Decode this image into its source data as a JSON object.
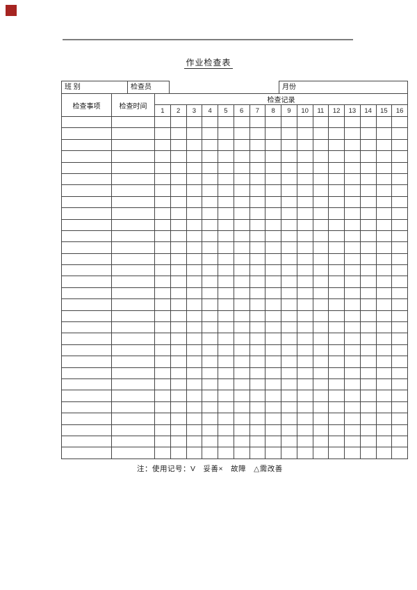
{
  "marker": {
    "color": "#a62421"
  },
  "header": {
    "title": "作业检查表"
  },
  "form": {
    "class_label": "班 别",
    "inspector_label": "检查员",
    "month_label": "月份"
  },
  "table": {
    "item_header": "检查事项",
    "time_header": "检查时间",
    "record_header": "检查记录",
    "day_numbers": [
      "1",
      "2",
      "3",
      "4",
      "5",
      "6",
      "7",
      "8",
      "9",
      "10",
      "11",
      "12",
      "13",
      "14",
      "15",
      "16"
    ],
    "body_row_count": 30,
    "body_column_count": 16
  },
  "footer": {
    "note": "注：使用记号：V　妥善×　故障　△需改善"
  },
  "colors": {
    "grid_line": "#444444",
    "rule_line": "#7d7d7d",
    "marker_red": "#a62421"
  }
}
